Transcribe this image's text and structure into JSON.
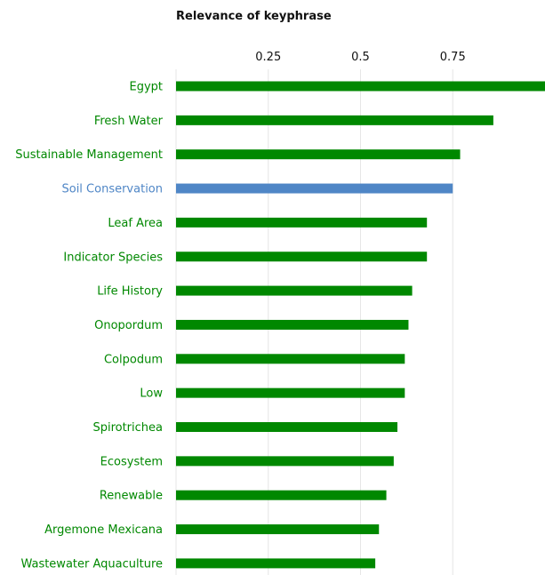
{
  "chart_data": {
    "type": "bar",
    "orientation": "horizontal",
    "title": "Relevance of keyphrase",
    "xlabel": "",
    "ylabel": "",
    "x_axis_position": "top",
    "xlim": [
      0,
      1.0
    ],
    "xticks": [
      0.25,
      0.5,
      0.75
    ],
    "xtick_labels": [
      "0.25",
      "0.5",
      "0.75"
    ],
    "grid": true,
    "categories": [
      "Egypt",
      "Fresh Water",
      "Sustainable Management",
      "Soil Conservation",
      "Leaf Area",
      "Indicator Species",
      "Life History",
      "Onopordum",
      "Colpodum",
      "Low",
      "Spirotrichea",
      "Ecosystem",
      "Renewable",
      "Argemone Mexicana",
      "Wastewater Aquaculture"
    ],
    "values": [
      1.0,
      0.86,
      0.77,
      0.75,
      0.68,
      0.68,
      0.64,
      0.63,
      0.62,
      0.62,
      0.6,
      0.59,
      0.57,
      0.55,
      0.54
    ],
    "highlight_index": 3,
    "colors": {
      "default": "#008800",
      "highlight": "#4f86c6"
    }
  }
}
